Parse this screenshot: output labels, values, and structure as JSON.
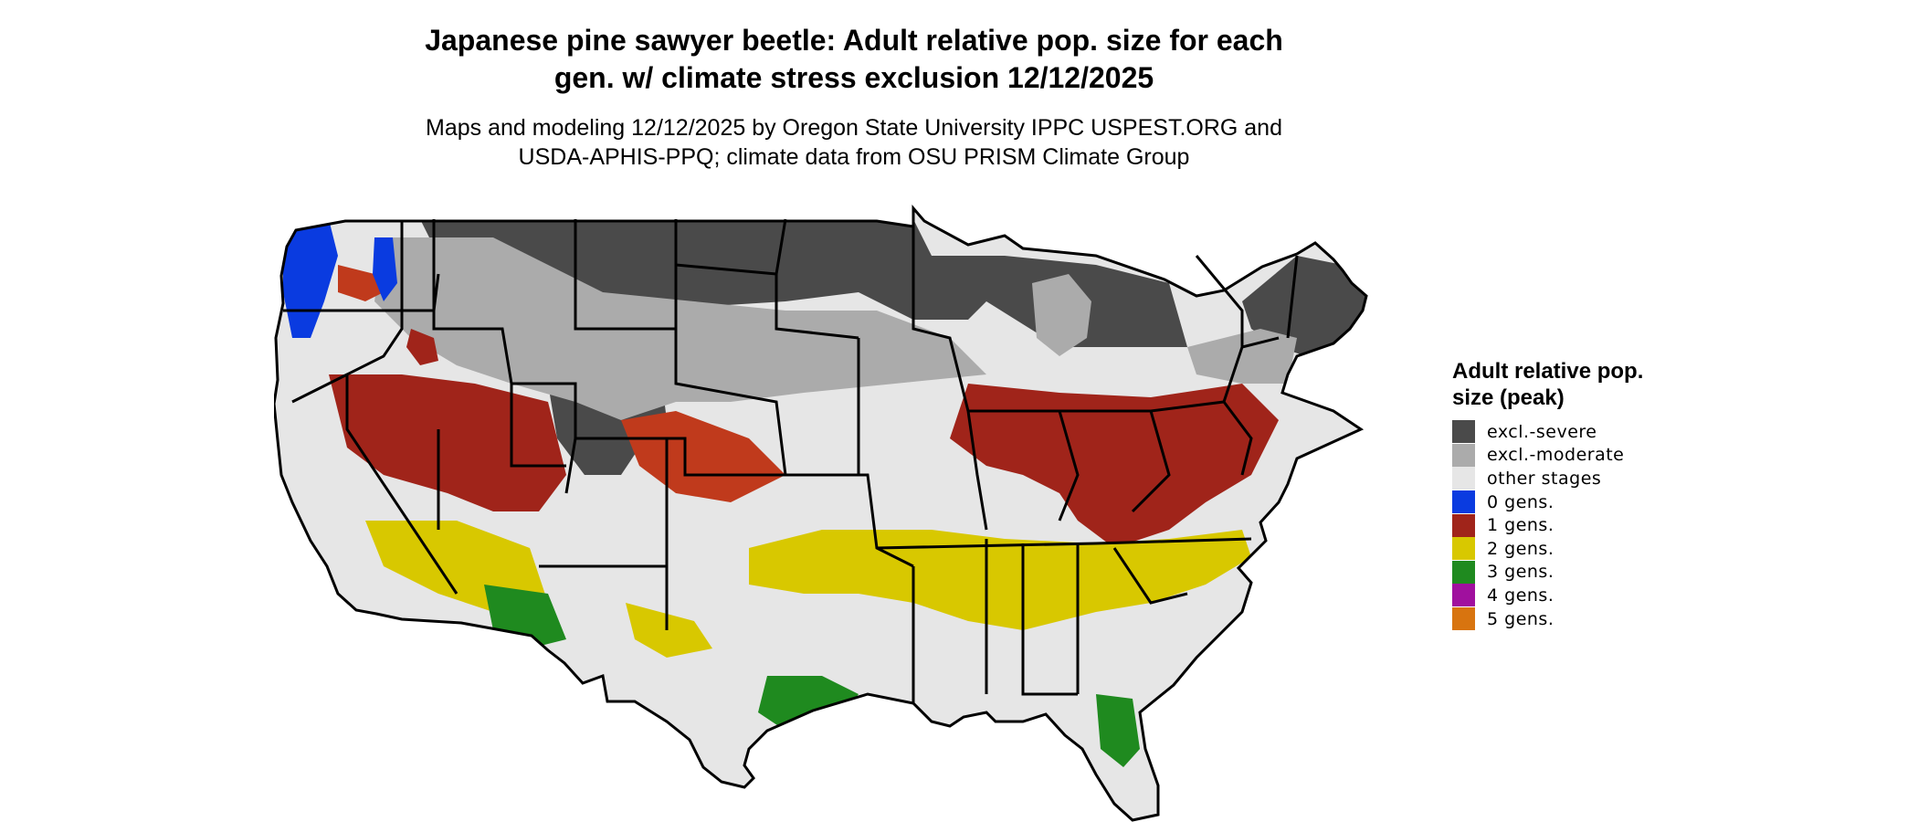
{
  "title": {
    "line1": "Japanese pine sawyer beetle: Adult relative pop. size for each",
    "line2": "gen. w/ climate stress exclusion 12/12/2025"
  },
  "subtitle": {
    "line1": "Maps and modeling 12/12/2025 by Oregon State University IPPC USPEST.ORG and",
    "line2": "USDA-APHIS-PPQ; climate data from OSU PRISM Climate Group"
  },
  "legend": {
    "title": "Adult relative pop. size (peak)",
    "items": [
      {
        "label": "excl.-severe",
        "color": "#4a4a4a"
      },
      {
        "label": "excl.-moderate",
        "color": "#ababab"
      },
      {
        "label": "other stages",
        "color": "#e6e6e6"
      },
      {
        "label": "0 gens.",
        "color": "#0a3be0"
      },
      {
        "label": "1 gens.",
        "color": "#a0241a"
      },
      {
        "label": "2 gens.",
        "color": "#d8c800"
      },
      {
        "label": "3 gens.",
        "color": "#1f8a1f"
      },
      {
        "label": "4 gens.",
        "color": "#a0109e"
      },
      {
        "label": "5 gens.",
        "color": "#d8740f"
      }
    ]
  },
  "map": {
    "background_color": "#e6e6e6",
    "outline_color": "#000000"
  }
}
